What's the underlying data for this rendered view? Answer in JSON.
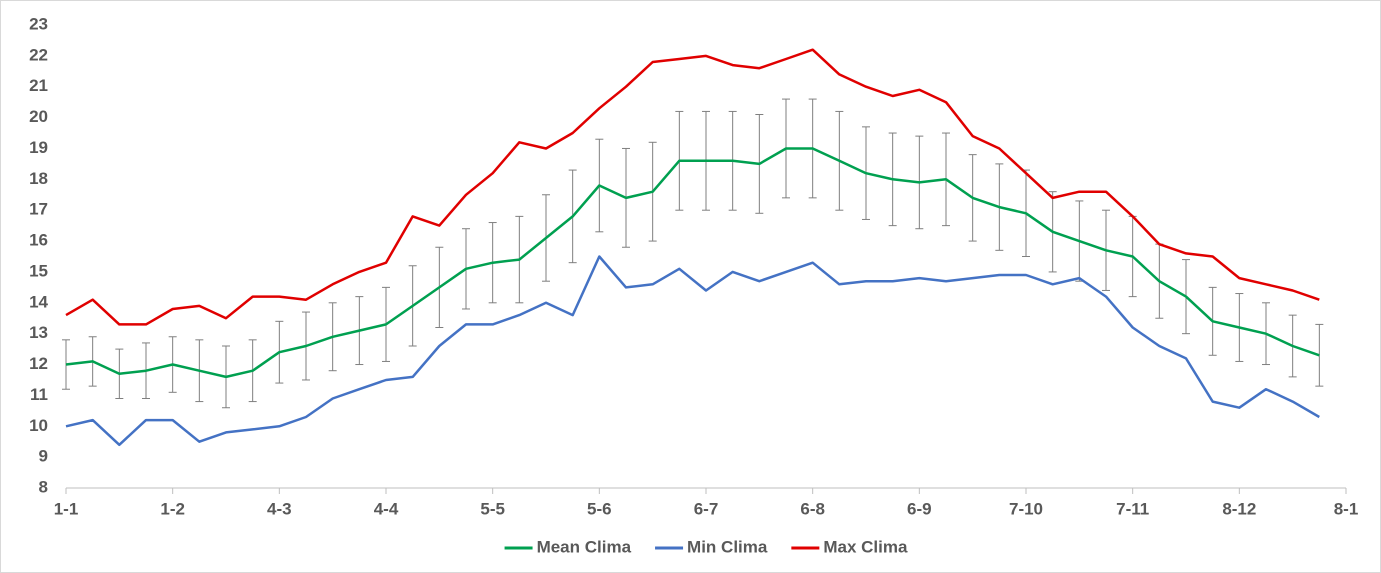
{
  "chart_data": {
    "type": "line",
    "categories": [
      "1-1",
      null,
      null,
      null,
      "1-2",
      null,
      null,
      null,
      "4-3",
      null,
      null,
      null,
      "4-4",
      null,
      null,
      null,
      "5-5",
      null,
      null,
      null,
      "5-6",
      null,
      null,
      null,
      "6-7",
      null,
      null,
      null,
      "6-8",
      null,
      null,
      null,
      "6-9",
      null,
      null,
      null,
      "7-10",
      null,
      null,
      null,
      "7-11",
      null,
      null,
      null,
      "8-12",
      null,
      null,
      null,
      "8-1"
    ],
    "series": [
      {
        "name": "Mean Clima",
        "color": "#00a050",
        "values": [
          12.0,
          12.1,
          11.7,
          11.8,
          12.0,
          11.8,
          11.6,
          11.8,
          12.4,
          12.6,
          12.9,
          13.1,
          13.3,
          13.9,
          14.5,
          15.1,
          15.3,
          15.4,
          16.1,
          16.8,
          17.8,
          17.4,
          17.6,
          18.6,
          18.6,
          18.6,
          18.5,
          19.0,
          19.0,
          18.6,
          18.2,
          18.0,
          17.9,
          18.0,
          17.4,
          17.1,
          16.9,
          16.3,
          16.0,
          15.7,
          15.5,
          14.7,
          14.2,
          13.4,
          13.2,
          13.0,
          12.6,
          12.3,
          null
        ],
        "errors": [
          0.8,
          0.8,
          0.8,
          0.9,
          0.9,
          1.0,
          1.0,
          1.0,
          1.0,
          1.1,
          1.1,
          1.1,
          1.2,
          1.3,
          1.3,
          1.3,
          1.3,
          1.4,
          1.4,
          1.5,
          1.5,
          1.6,
          1.6,
          1.6,
          1.6,
          1.6,
          1.6,
          1.6,
          1.6,
          1.6,
          1.5,
          1.5,
          1.5,
          1.5,
          1.4,
          1.4,
          1.4,
          1.3,
          1.3,
          1.3,
          1.3,
          1.2,
          1.2,
          1.1,
          1.1,
          1.0,
          1.0,
          1.0,
          null
        ],
        "error_color": "#7f7f7f"
      },
      {
        "name": "Min Clima",
        "color": "#4472c4",
        "values": [
          10.0,
          10.2,
          9.4,
          10.2,
          10.2,
          9.5,
          9.8,
          9.9,
          10.0,
          10.3,
          10.9,
          11.2,
          11.5,
          11.6,
          12.6,
          13.3,
          13.3,
          13.6,
          14.0,
          13.6,
          15.5,
          14.5,
          14.6,
          15.1,
          14.4,
          15.0,
          14.7,
          15.0,
          15.3,
          14.6,
          14.7,
          14.7,
          14.8,
          14.7,
          14.8,
          14.9,
          14.9,
          14.6,
          14.8,
          14.2,
          13.2,
          12.6,
          12.2,
          10.8,
          10.6,
          11.2,
          10.8,
          10.3,
          null
        ]
      },
      {
        "name": "Max Clima",
        "color": "#e00000",
        "values": [
          13.6,
          14.1,
          13.3,
          13.3,
          13.8,
          13.9,
          13.5,
          14.2,
          14.2,
          14.1,
          14.6,
          15.0,
          15.3,
          16.8,
          16.5,
          17.5,
          18.2,
          19.2,
          19.0,
          19.5,
          20.3,
          21.0,
          21.8,
          21.9,
          22.0,
          21.7,
          21.6,
          21.9,
          22.2,
          21.4,
          21.0,
          20.7,
          20.9,
          20.5,
          19.4,
          19.0,
          18.2,
          17.4,
          17.6,
          17.6,
          16.8,
          15.9,
          15.6,
          15.5,
          14.8,
          14.6,
          14.4,
          14.1,
          null
        ]
      }
    ],
    "ylim": [
      8,
      23
    ],
    "yticks": [
      8,
      9,
      10,
      11,
      12,
      13,
      14,
      15,
      16,
      17,
      18,
      19,
      20,
      21,
      22,
      23
    ],
    "grid": false,
    "legend": "bottom"
  }
}
